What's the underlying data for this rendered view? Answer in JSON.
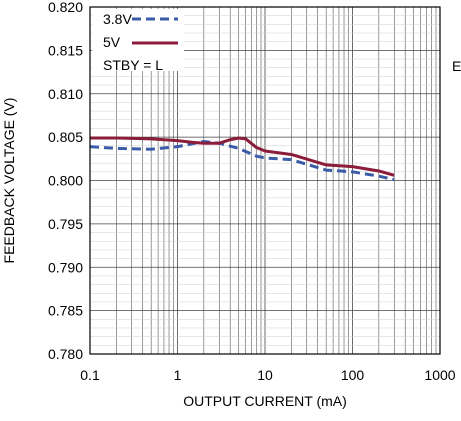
{
  "chart_data": {
    "type": "line",
    "x_scale": "log",
    "xlim": [
      0.1,
      1000
    ],
    "ylim": [
      0.78,
      0.82
    ],
    "grid": true,
    "xlabel": "OUTPUT CURRENT (mA)",
    "ylabel": "FEEDBACK VOLTAGE (V)",
    "x_tick_labels": [
      "0.1",
      "1",
      "10",
      "100",
      "1000"
    ],
    "x_ticks": [
      0.1,
      1,
      10,
      100,
      1000
    ],
    "y_tick_labels": [
      "0.780",
      "0.785",
      "0.790",
      "0.795",
      "0.800",
      "0.805",
      "0.810",
      "0.815",
      "0.820"
    ],
    "y_ticks": [
      0.78,
      0.785,
      0.79,
      0.795,
      0.8,
      0.805,
      0.81,
      0.815,
      0.82
    ],
    "legend_position": "top-left",
    "legend_note": "STBY = L",
    "series": [
      {
        "name": "3.8V",
        "color": "#3a5ba7",
        "dash": true,
        "x": [
          0.1,
          0.2,
          0.5,
          1,
          2,
          3,
          5,
          8,
          10,
          20,
          50,
          100,
          200,
          300
        ],
        "y": [
          0.8039,
          0.8037,
          0.8036,
          0.8039,
          0.8045,
          0.8043,
          0.8037,
          0.8028,
          0.8026,
          0.8024,
          0.8012,
          0.801,
          0.8005,
          0.8001
        ]
      },
      {
        "name": "5V",
        "color": "#8b1c3a",
        "dash": false,
        "x": [
          0.1,
          0.2,
          0.5,
          1,
          1.5,
          2,
          3,
          4,
          5,
          6,
          8,
          10,
          20,
          50,
          100,
          200,
          300
        ],
        "y": [
          0.8049,
          0.8049,
          0.8048,
          0.8046,
          0.8044,
          0.8043,
          0.8043,
          0.8047,
          0.8049,
          0.8048,
          0.8038,
          0.8034,
          0.803,
          0.8018,
          0.8016,
          0.8011,
          0.8006
        ]
      }
    ]
  },
  "side_text": "E"
}
